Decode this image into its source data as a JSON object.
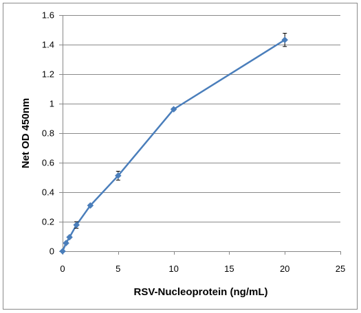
{
  "chart_data": {
    "type": "line",
    "title": "",
    "xlabel": "RSV-Nucleoprotein (ng/mL)",
    "ylabel": "Net OD 450nm",
    "xlim": [
      0,
      25
    ],
    "ylim": [
      0,
      1.6
    ],
    "x_ticks": [
      "0",
      "5",
      "10",
      "15",
      "20",
      "25"
    ],
    "y_ticks": [
      "0",
      "0.2",
      "0.4",
      "0.6",
      "0.8",
      "1",
      "1.2",
      "1.4",
      "1.6"
    ],
    "grid": "horizontal",
    "legend": "none",
    "series": [
      {
        "color": "#4a7ebb",
        "marker": "diamond",
        "x": [
          0,
          0.3125,
          0.625,
          1.25,
          2.5,
          5,
          10,
          20
        ],
        "y": [
          0.0,
          0.055,
          0.095,
          0.178,
          0.31,
          0.512,
          0.962,
          1.432
        ],
        "error": [
          0.0,
          0.005,
          0.006,
          0.022,
          0.006,
          0.03,
          0.007,
          0.045
        ]
      }
    ],
    "colors": {
      "line": "#4a7ebb",
      "marker": "#4a7ebb",
      "grid": "#898989",
      "axis": "#868686",
      "frame": "#898989",
      "error_bar": "#000000"
    }
  }
}
